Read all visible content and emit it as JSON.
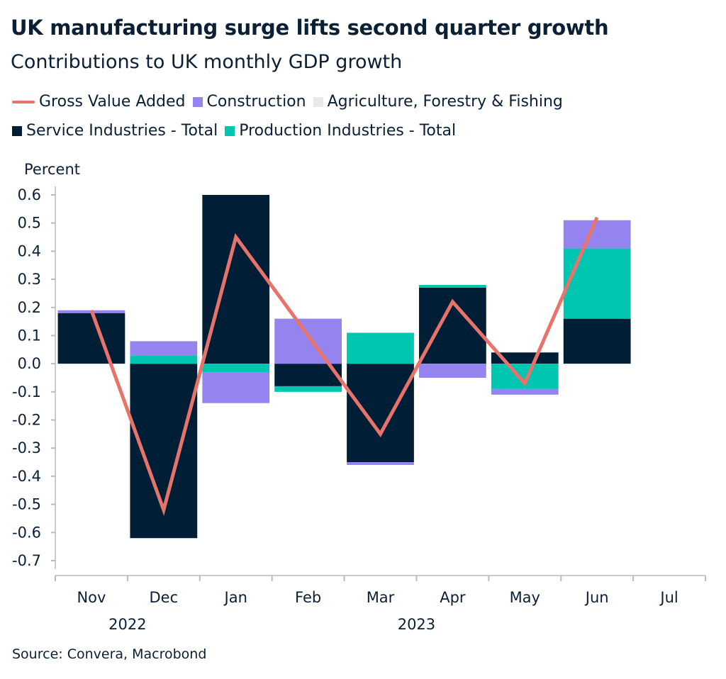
{
  "chart_data": {
    "type": "bar",
    "stacked": true,
    "title": "UK manufacturing surge lifts second quarter growth",
    "subtitle": "Contributions to UK monthly GDP growth",
    "ylabel": "Percent",
    "ylim": [
      -0.7,
      0.6
    ],
    "yticks": [
      "0.6",
      "0.5",
      "0.4",
      "0.3",
      "0.2",
      "0.1",
      "0.0",
      "-0.1",
      "-0.2",
      "-0.3",
      "-0.4",
      "-0.5",
      "-0.6",
      "-0.7"
    ],
    "categories": [
      "Nov",
      "Dec",
      "Jan",
      "Feb",
      "Mar",
      "Apr",
      "May",
      "Jun",
      "Jul"
    ],
    "year_labels": [
      {
        "label": "2022",
        "between": [
          "Nov",
          "Dec"
        ]
      },
      {
        "label": "2023",
        "between": [
          "Mar",
          "Apr"
        ]
      }
    ],
    "grid": false,
    "legend_position": "top",
    "series": [
      {
        "name": "Service Industries - Total",
        "type": "bar",
        "color": "#001f37",
        "values": [
          0.18,
          -0.62,
          0.6,
          -0.08,
          -0.35,
          0.27,
          0.04,
          0.16,
          null
        ]
      },
      {
        "name": "Production Industries - Total",
        "type": "bar",
        "color": "#00c5b0",
        "values": [
          0.0,
          0.03,
          -0.03,
          -0.02,
          0.11,
          0.01,
          -0.09,
          0.25,
          null
        ]
      },
      {
        "name": "Construction",
        "type": "bar",
        "color": "#9584f0",
        "values": [
          0.01,
          0.05,
          -0.11,
          0.16,
          -0.01,
          -0.05,
          -0.02,
          0.1,
          null
        ]
      },
      {
        "name": "Agriculture, Forestry & Fishing",
        "type": "bar",
        "color": "#e8e8e8",
        "values": [
          0,
          0,
          0,
          0,
          0,
          0,
          0,
          0,
          null
        ]
      },
      {
        "name": "Gross Value Added",
        "type": "line",
        "color": "#e8736a",
        "values": [
          0.19,
          -0.52,
          0.45,
          0.1,
          -0.25,
          0.22,
          -0.07,
          0.52,
          null
        ]
      }
    ],
    "source": "Source: Convera, Macrobond"
  },
  "legend_rows": [
    [
      {
        "name": "Gross Value Added",
        "kind": "line",
        "color": "#e8736a"
      },
      {
        "name": "Construction",
        "kind": "box",
        "color": "#9584f0"
      },
      {
        "name": "Agriculture, Forestry & Fishing",
        "kind": "box",
        "color": "#e8e8e8"
      }
    ],
    [
      {
        "name": "Service Industries - Total",
        "kind": "box",
        "color": "#001f37"
      },
      {
        "name": "Production Industries - Total",
        "kind": "box",
        "color": "#00c5b0"
      }
    ]
  ]
}
